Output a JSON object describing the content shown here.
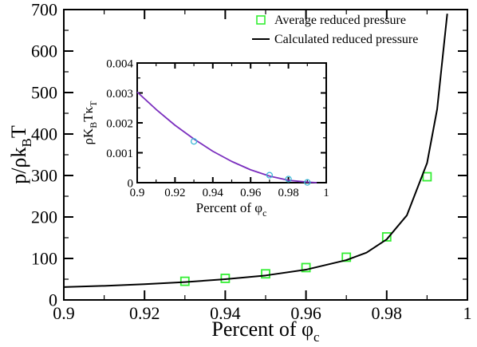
{
  "chart_data": [
    {
      "panel": "main",
      "type": "line",
      "xlabel": "Percent of φ",
      "xlabel_subscript": "c",
      "ylabel": "p/ρk",
      "ylabel_subscript": "B",
      "ylabel_suffix": "T",
      "xlim": [
        0.9,
        1.0
      ],
      "ylim": [
        0,
        700
      ],
      "x_ticks": [
        "0.9",
        "0.92",
        "0.94",
        "0.96",
        "0.98",
        "1"
      ],
      "y_ticks": [
        "0",
        "100",
        "200",
        "300",
        "400",
        "500",
        "600",
        "700"
      ],
      "grid": false,
      "legend_position": "top-right",
      "series": [
        {
          "name": "Average reduced pressure",
          "type": "scatter",
          "marker": "hollow-square",
          "color": "#33ee33",
          "x": [
            0.93,
            0.94,
            0.95,
            0.96,
            0.97,
            0.98,
            0.99
          ],
          "y": [
            45,
            52,
            63,
            78,
            103,
            152,
            297
          ]
        },
        {
          "name": "Calculated reduced pressure",
          "type": "line",
          "color": "#000000",
          "x": [
            0.9,
            0.91,
            0.92,
            0.93,
            0.94,
            0.95,
            0.96,
            0.97,
            0.975,
            0.98,
            0.985,
            0.99,
            0.9925,
            0.995
          ],
          "y": [
            31,
            34,
            38,
            43,
            50,
            59,
            73,
            96,
            114,
            146,
            204,
            330,
            460,
            690
          ]
        }
      ]
    },
    {
      "panel": "inset",
      "type": "line",
      "xlabel": "Percent of φ",
      "xlabel_subscript": "c",
      "ylabel": "ρK",
      "ylabel_subscript": "B",
      "ylabel_suffix": "Tκ",
      "ylabel_subscript2": "T",
      "xlim": [
        0.9,
        1.0
      ],
      "ylim": [
        0,
        0.004
      ],
      "x_ticks": [
        "0.9",
        "0.92",
        "0.94",
        "0.96",
        "0.98",
        "1"
      ],
      "y_ticks": [
        "0",
        "0.001",
        "0.002",
        "0.003",
        "0.004"
      ],
      "grid": false,
      "series": [
        {
          "type": "line",
          "color": "#7b2fbe",
          "x": [
            0.9,
            0.91,
            0.92,
            0.93,
            0.94,
            0.95,
            0.96,
            0.97,
            0.98,
            0.99,
            0.995
          ],
          "y": [
            0.00303,
            0.00245,
            0.00192,
            0.00146,
            0.00105,
            0.00071,
            0.00043,
            0.00022,
            8e-05,
            2e-05,
            0.0
          ]
        },
        {
          "type": "scatter",
          "marker": "hollow-circle",
          "color": "#3ab7d6",
          "x": [
            0.93,
            0.97,
            0.98,
            0.99
          ],
          "y": [
            0.00138,
            0.00025,
            0.00012,
            1e-05
          ]
        }
      ]
    }
  ]
}
